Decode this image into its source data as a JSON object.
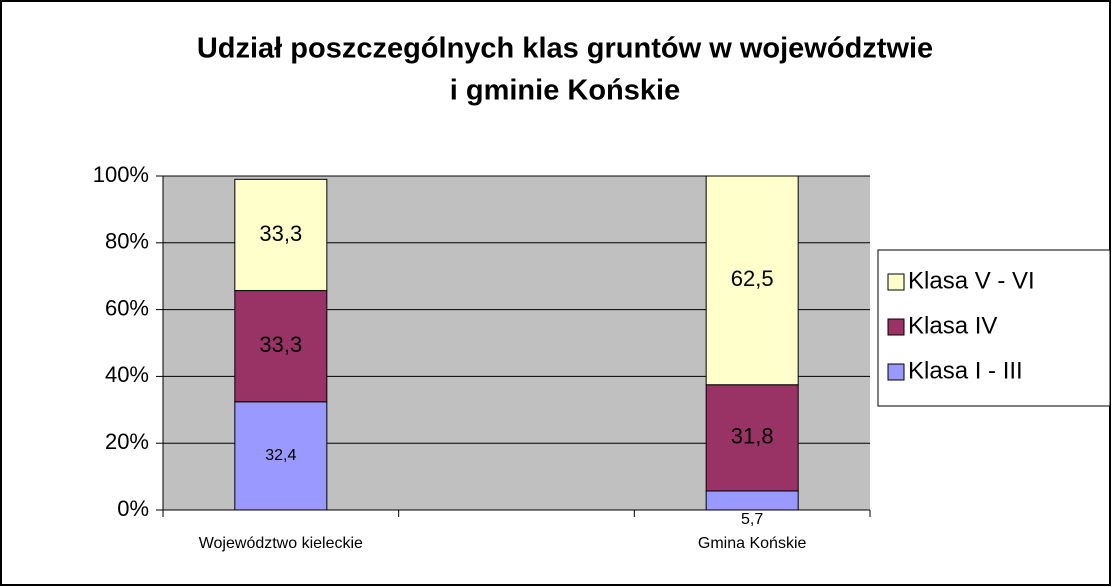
{
  "chart_data": {
    "type": "stacked_bar_100",
    "title": [
      "Udział poszczególnych klas gruntów w województwie",
      "i gminie Końskie"
    ],
    "categories": [
      "Województwo kieleckie",
      "Gmina Końskie"
    ],
    "series": [
      {
        "name": "Klasa I - III",
        "color": "#9999ff",
        "values": [
          32.4,
          5.7
        ],
        "value_labels": [
          "32,4",
          "5,7"
        ]
      },
      {
        "name": "Klasa IV",
        "color": "#993366",
        "values": [
          33.3,
          31.8
        ],
        "value_labels": [
          "33,3",
          "31,8"
        ]
      },
      {
        "name": "Klasa V - VI",
        "color": "#ffffcc",
        "values": [
          33.3,
          62.5
        ],
        "value_labels": [
          "33,3",
          "62,5"
        ]
      }
    ],
    "ylim": [
      0,
      100
    ],
    "yticks": [
      {
        "value": 0,
        "label": "0%"
      },
      {
        "value": 20,
        "label": "20%"
      },
      {
        "value": 40,
        "label": "40%"
      },
      {
        "value": 60,
        "label": "60%"
      },
      {
        "value": 80,
        "label": "80%"
      },
      {
        "value": 100,
        "label": "100%"
      }
    ],
    "grid": true,
    "plot_background": "#c0c0c0",
    "legend": "right"
  }
}
